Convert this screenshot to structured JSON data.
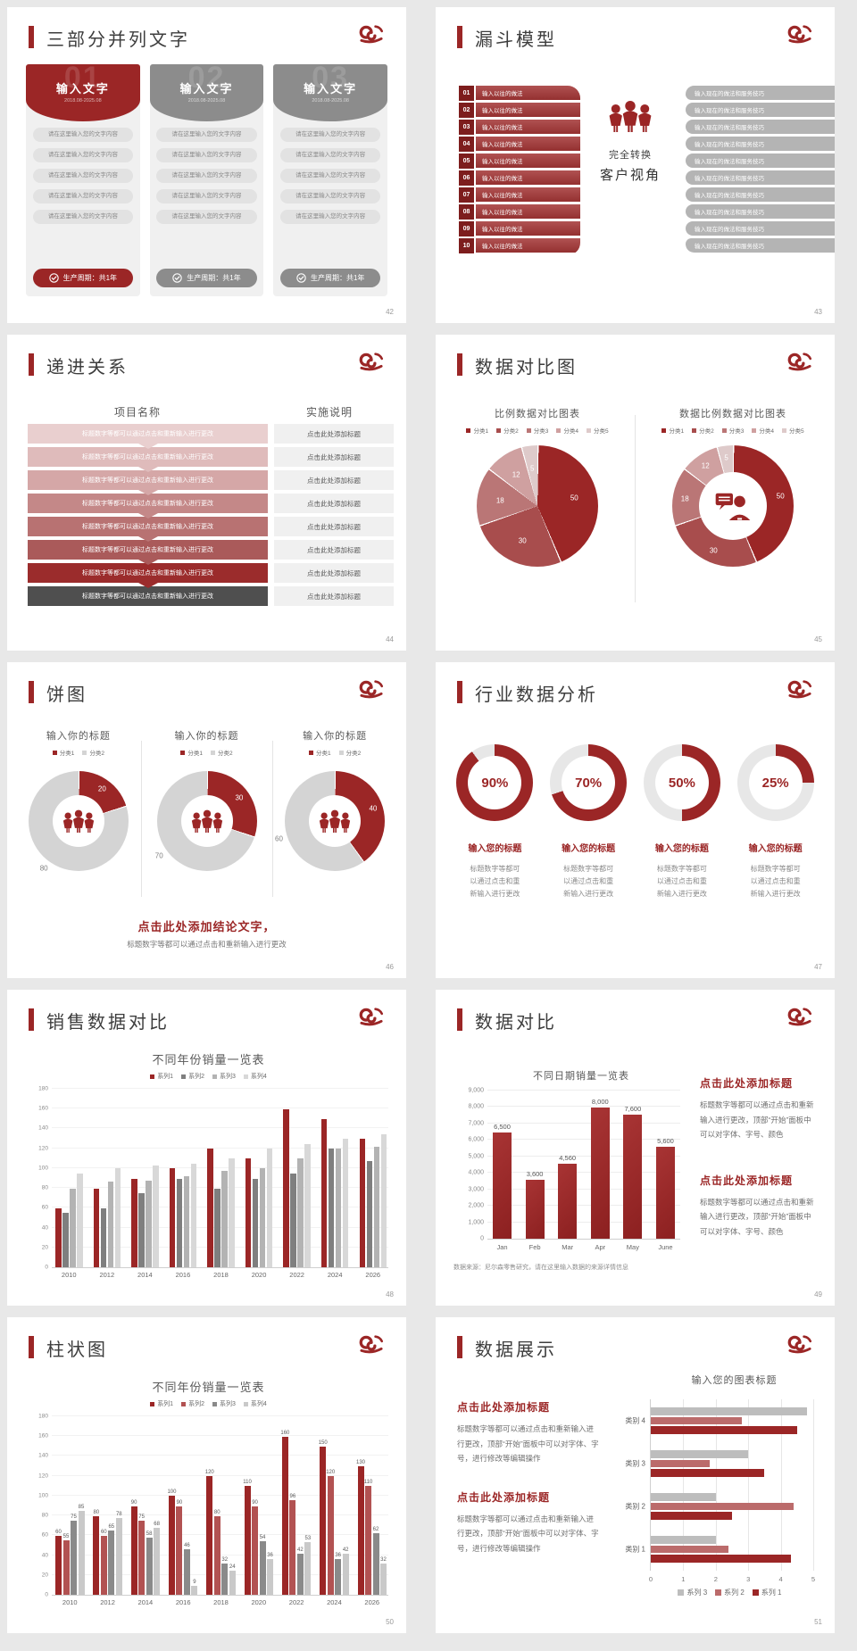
{
  "colors": {
    "accent": "#9b2626",
    "accent_dark": "#7d1d1d",
    "gray_head": "#8c8c8c",
    "page_bg": "#e8e8e8",
    "table_rows": [
      "#e9cfcf",
      "#dfbbbb",
      "#d5a7a7",
      "#c48888",
      "#b87272",
      "#aa5a5a",
      "#9b2c2c",
      "#4f4f4f"
    ]
  },
  "slides": {
    "s42": {
      "title": "三部分并列文字",
      "page_no": "42",
      "cards": [
        {
          "number": "01",
          "heading": "输入文字",
          "date": "2018.08-2025.08",
          "accent": "#9b2626"
        },
        {
          "number": "02",
          "heading": "输入文字",
          "date": "2018.08-2025.08",
          "accent": "#8c8c8c"
        },
        {
          "number": "03",
          "heading": "输入文字",
          "date": "2018.08-2025.08",
          "accent": "#8c8c8c"
        }
      ],
      "pill_label": "请在这里输入您的文字内容",
      "pill_count": 5,
      "footer_label": "生产周期：共1年"
    },
    "s43": {
      "title": "漏斗模型",
      "page_no": "43",
      "steps": 10,
      "left_label": "输入以往的做法",
      "right_label": "输入现在的做法和服务技巧",
      "center_line1": "完全转换",
      "center_line2": "客户视角"
    },
    "s44": {
      "title": "递进关系",
      "page_no": "44",
      "col1_header": "项目名称",
      "col2_header": "实施说明",
      "row_count": 8,
      "row_left": "标题数字等都可以通过点击和重新输入进行更改",
      "row_right": "点击此处添加标题"
    },
    "s45": {
      "title": "数据对比图",
      "page_no": "45"
    },
    "s46": {
      "title": "饼图",
      "page_no": "46",
      "conclusion": "点击此处添加结论文字，",
      "conclusion_sub": "标题数字等都可以通过点击和重新输入进行更改"
    },
    "s47": {
      "title": "行业数据分析",
      "page_no": "47",
      "item_heading": "输入您的标题",
      "item_body": "标题数字等都可以通过点击和重新输入进行更改"
    },
    "s48": {
      "title": "销售数据对比",
      "page_no": "48"
    },
    "s49": {
      "title": "数据对比",
      "page_no": "49",
      "source_note": "数据来源：尼尔森零售研究，请在这里输入数据的来源详情信息",
      "blocks": [
        {
          "heading": "点击此处添加标题",
          "body": "标题数字等都可以通过点击和重新输入进行更改，顶部“开始”面板中可以对字体、字号、颜色"
        },
        {
          "heading": "点击此处添加标题",
          "body": "标题数字等都可以通过点击和重新输入进行更改，顶部“开始”面板中可以对字体、字号、颜色"
        }
      ]
    },
    "s50": {
      "title": "柱状图",
      "page_no": "50"
    },
    "s51": {
      "title": "数据展示",
      "page_no": "51",
      "blocks": [
        {
          "heading": "点击此处添加标题",
          "body": "标题数字等都可以通过点击和重新输入进行更改，顶部“开始”面板中可以对字体、字号，进行修改等编辑操作"
        },
        {
          "heading": "点击此处添加标题",
          "body": "标题数字等都可以通过点击和重新输入进行更改，顶部“开始”面板中可以对字体、字号，进行修改等编辑操作"
        }
      ]
    }
  },
  "chart_data": [
    {
      "id": "pie45",
      "slide": "45",
      "type": "pie",
      "title": "比例数据对比图表",
      "labels": [
        "分类1",
        "分类2",
        "分类3",
        "分类4",
        "分类5"
      ],
      "values": [
        50,
        30,
        18,
        12,
        5
      ],
      "colors": [
        "#9b2626",
        "#a84d4d",
        "#ba7676",
        "#cfa0a0",
        "#decaca"
      ],
      "legend_position": "top"
    },
    {
      "id": "donut45",
      "slide": "45",
      "type": "pie",
      "subtype": "donut",
      "title": "数据比例数据对比图表",
      "labels": [
        "分类1",
        "分类2",
        "分类3",
        "分类4",
        "分类5"
      ],
      "values": [
        50,
        30,
        18,
        12,
        5
      ],
      "colors": [
        "#9b2626",
        "#a84d4d",
        "#ba7676",
        "#cfa0a0",
        "#decaca"
      ],
      "center_icon": "person-chat-icon"
    },
    {
      "id": "donut46a",
      "slide": "46",
      "type": "pie",
      "subtype": "donut",
      "title": "输入你的标题",
      "labels": [
        "分类1",
        "分类2"
      ],
      "values": [
        20,
        80
      ],
      "colors": [
        "#9b2626",
        "#d4d4d4"
      ],
      "center_icon": "people-icon"
    },
    {
      "id": "donut46b",
      "slide": "46",
      "type": "pie",
      "subtype": "donut",
      "title": "输入你的标题",
      "labels": [
        "分类1",
        "分类2"
      ],
      "values": [
        30,
        70
      ],
      "colors": [
        "#9b2626",
        "#d4d4d4"
      ],
      "center_icon": "people-icon"
    },
    {
      "id": "donut46c",
      "slide": "46",
      "type": "pie",
      "subtype": "donut",
      "title": "输入你的标题",
      "labels": [
        "分类1",
        "分类2"
      ],
      "values": [
        40,
        60
      ],
      "colors": [
        "#9b2626",
        "#d4d4d4"
      ],
      "center_icon": "people-icon"
    },
    {
      "id": "rings47",
      "slide": "47",
      "type": "progress-rings",
      "unit": "%",
      "values": [
        90,
        70,
        50,
        25
      ],
      "labels": [
        "90%",
        "70%",
        "50%",
        "25%"
      ],
      "ring_color": "#9b2626",
      "track_color": "#e7e7e7"
    },
    {
      "id": "bars48",
      "slide": "48",
      "type": "bar",
      "title": "不同年份销量一览表",
      "categories": [
        "2010",
        "2012",
        "2014",
        "2016",
        "2018",
        "2020",
        "2022",
        "2024",
        "2026"
      ],
      "series": [
        {
          "name": "系列1",
          "color": "#9b2626",
          "values": [
            60,
            80,
            90,
            100,
            120,
            110,
            160,
            150,
            130
          ]
        },
        {
          "name": "系列2",
          "color": "#7f7f7f",
          "values": [
            55,
            60,
            75,
            90,
            80,
            90,
            95,
            120,
            108
          ]
        },
        {
          "name": "系列3",
          "color": "#b3b3b3",
          "values": [
            80,
            87,
            88,
            92,
            98,
            100,
            110,
            120,
            122
          ]
        },
        {
          "name": "系列4",
          "color": "#d8d8d8",
          "values": [
            95,
            100,
            103,
            105,
            110,
            120,
            125,
            130,
            135
          ]
        }
      ],
      "ylim": [
        0,
        180
      ],
      "ytick_step": 20,
      "data_labels": false,
      "legend_position": "top"
    },
    {
      "id": "bars49",
      "slide": "49",
      "type": "bar",
      "title": "不同日期销量一览表",
      "categories": [
        "Jan",
        "Feb",
        "Mar",
        "Apr",
        "May",
        "June"
      ],
      "series": [
        {
          "name": "销量",
          "color": "#9b2626",
          "values": [
            6500,
            3600,
            4560,
            8000,
            7600,
            5600
          ]
        }
      ],
      "value_labels": [
        "6,500",
        "3,600",
        "4,560",
        "8,000",
        "7,600",
        "5,600"
      ],
      "ytick_labels": [
        "9,000",
        "8,000",
        "7,000",
        "6,000",
        "5,000",
        "4,000",
        "3,000",
        "2,000",
        "1,000",
        "0"
      ],
      "ylim": [
        0,
        9000
      ],
      "ytick_step": 1000,
      "data_labels": true,
      "grid": true
    },
    {
      "id": "bars50",
      "slide": "50",
      "type": "bar",
      "title": "不同年份销量一览表",
      "categories": [
        "2010",
        "2012",
        "2014",
        "2016",
        "2018",
        "2020",
        "2022",
        "2024",
        "2026"
      ],
      "series": [
        {
          "name": "系列1",
          "color": "#9b2626",
          "values": [
            60,
            80,
            90,
            100,
            120,
            110,
            160,
            150,
            130
          ]
        },
        {
          "name": "系列2",
          "color": "#b25252",
          "values": [
            55,
            60,
            75,
            90,
            80,
            90,
            96,
            120,
            110
          ]
        },
        {
          "name": "系列3",
          "color": "#8a8a8a",
          "values": [
            75,
            65,
            58,
            46,
            32,
            54,
            42,
            36,
            62
          ]
        },
        {
          "name": "系列4",
          "color": "#c9c9c9",
          "values": [
            85,
            78,
            68,
            9,
            24,
            36,
            53,
            42,
            32
          ]
        }
      ],
      "ylim": [
        0,
        180
      ],
      "ytick_step": 20,
      "data_labels": true,
      "legend_position": "top"
    },
    {
      "id": "hbars51",
      "slide": "51",
      "type": "bar",
      "orientation": "horizontal",
      "title": "输入您的图表标题",
      "categories": [
        "类别 1",
        "类别 2",
        "类别 3",
        "类别 4"
      ],
      "series": [
        {
          "name": "系列 1",
          "color": "#9b2626",
          "values": [
            4.3,
            2.5,
            3.5,
            4.5
          ]
        },
        {
          "name": "系列 2",
          "color": "#bb6b6b",
          "values": [
            2.4,
            4.4,
            1.8,
            2.8
          ]
        },
        {
          "name": "系列 3",
          "color": "#bdbdbd",
          "values": [
            2.0,
            2.0,
            3.0,
            4.8
          ]
        }
      ],
      "xlim": [
        0,
        5
      ],
      "xtick_step": 1,
      "legend_position": "bottom",
      "grid": true
    }
  ]
}
